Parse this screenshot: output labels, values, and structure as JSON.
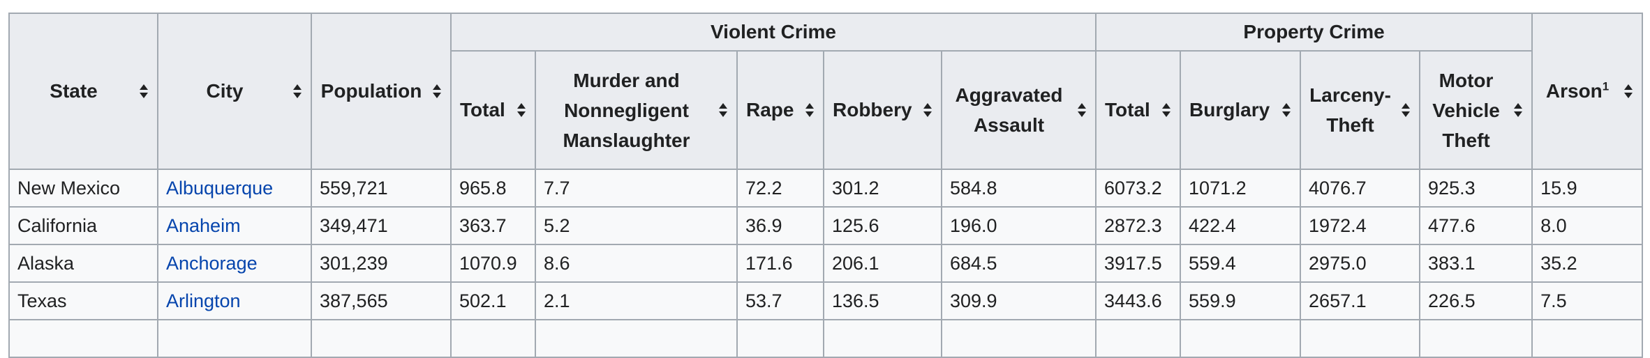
{
  "table": {
    "headers": {
      "state": "State",
      "city": "City",
      "population": "Population",
      "violent_crime": "Violent Crime",
      "property_crime": "Property Crime",
      "violent": {
        "total": "Total",
        "murder_line1": "Murder and",
        "murder_line2": "Nonnegligent",
        "murder_line3": "Manslaughter",
        "rape": "Rape",
        "robbery": "Robbery",
        "assault_line1": "Aggravated",
        "assault_line2": "Assault"
      },
      "property": {
        "total": "Total",
        "burglary": "Burglary",
        "larceny_line1": "Larceny-",
        "larceny_line2": "Theft",
        "mvt_line1": "Motor",
        "mvt_line2": "Vehicle",
        "mvt_line3": "Theft"
      },
      "arson": "Arson",
      "arson_note": "1"
    },
    "sort_icon": "sort-both-icon",
    "colors": {
      "header_bg": "#eaecf0",
      "cell_bg": "#f8f9fa",
      "border": "#a2a9b1",
      "link": "#0645ad"
    },
    "rows": [
      [
        "New Mexico",
        "Albuquerque",
        "559,721",
        "965.8",
        "7.7",
        "72.2",
        "301.2",
        "584.8",
        "6073.2",
        "1071.2",
        "4076.7",
        "925.3",
        "15.9"
      ],
      [
        "California",
        "Anaheim",
        "349,471",
        "363.7",
        "5.2",
        "36.9",
        "125.6",
        "196.0",
        "2872.3",
        "422.4",
        "1972.4",
        "477.6",
        "8.0"
      ],
      [
        "Alaska",
        "Anchorage",
        "301,239",
        "1070.9",
        "8.6",
        "171.6",
        "206.1",
        "684.5",
        "3917.5",
        "559.4",
        "2975.0",
        "383.1",
        "35.2"
      ],
      [
        "Texas",
        "Arlington",
        "387,565",
        "502.1",
        "2.1",
        "53.7",
        "136.5",
        "309.9",
        "3443.6",
        "559.9",
        "2657.1",
        "226.5",
        "7.5"
      ],
      [
        "",
        "",
        "",
        "",
        "",
        "",
        "",
        "",
        "",
        "",
        "",
        "",
        ""
      ]
    ]
  }
}
